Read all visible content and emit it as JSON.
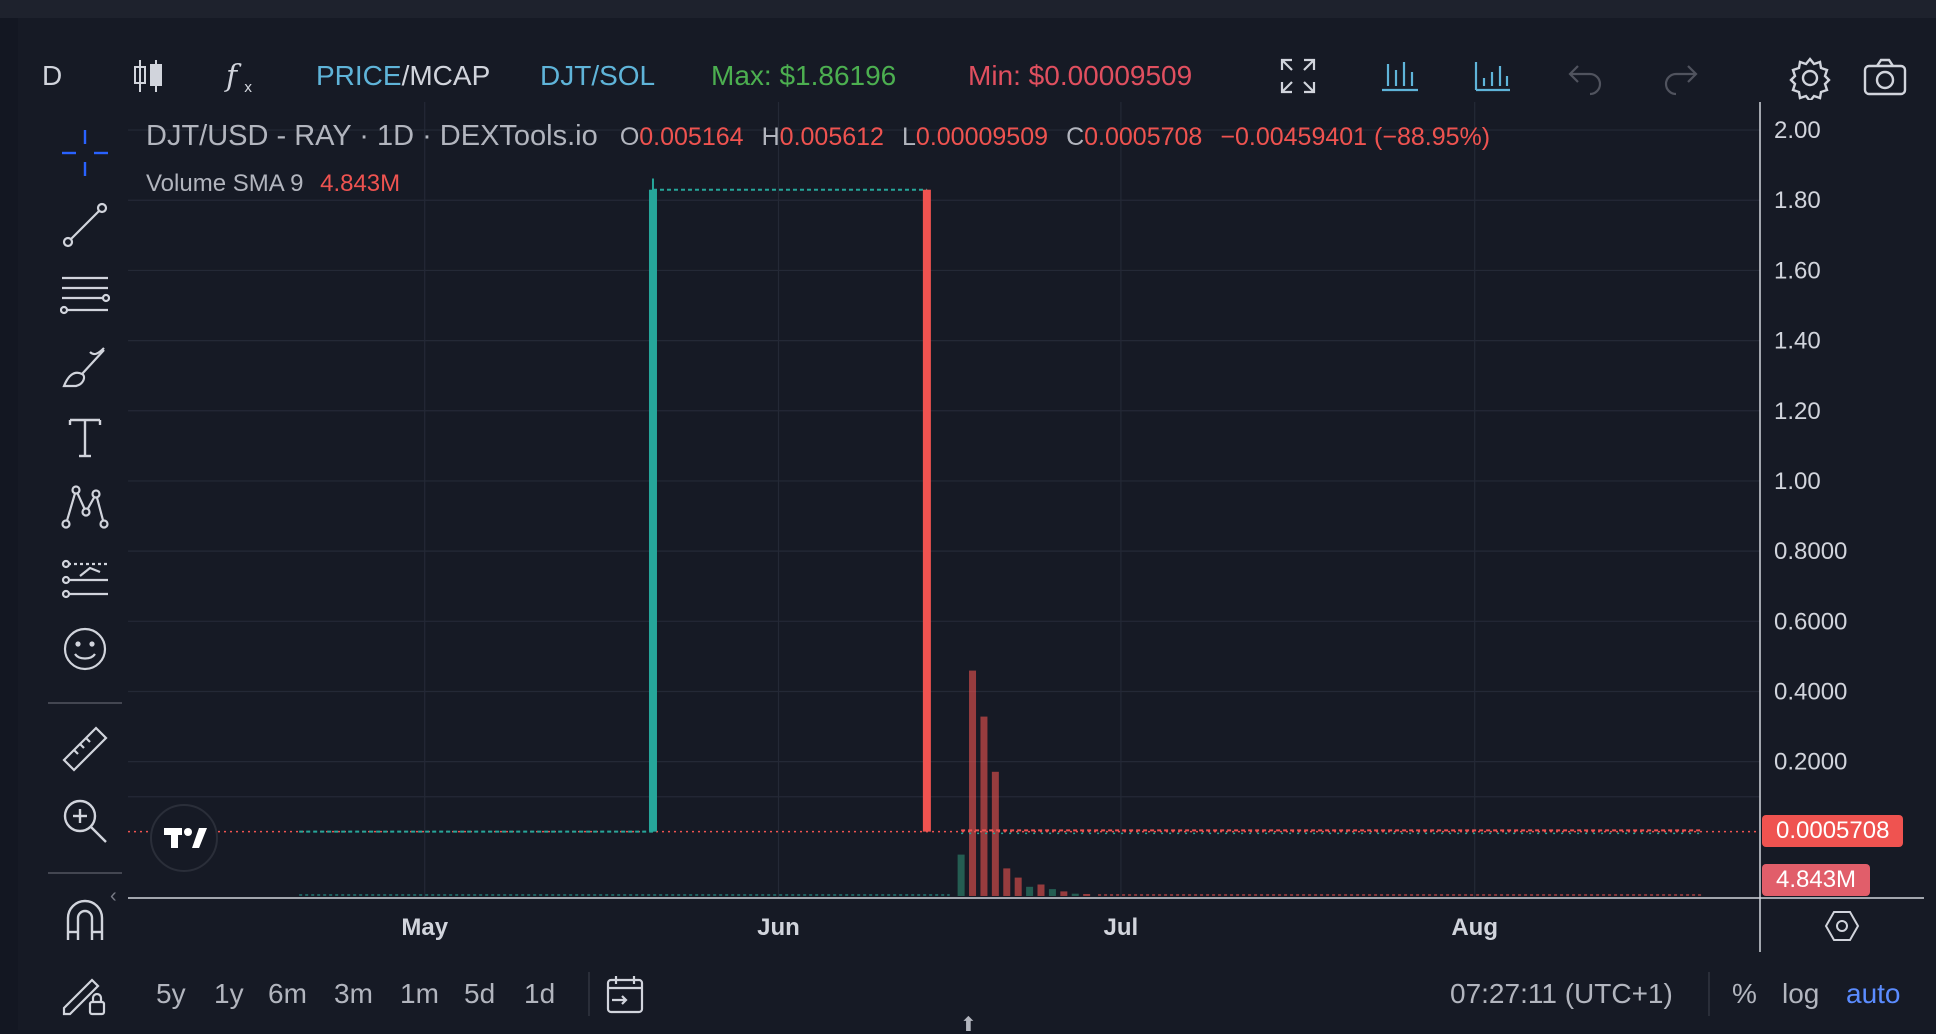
{
  "toolbar": {
    "interval": "D",
    "price_label": "PRICE",
    "separator": "/",
    "mcap_label": "MCAP",
    "pair_switch": "DJT/SOL",
    "max_label": "Max: $1.86196",
    "min_label": "Min: $0.00009509"
  },
  "legend": {
    "symbol_title": "DJT/USD - RAY · 1D · DEXTools.io",
    "o_key": "O",
    "o_val": "0.005164",
    "h_key": "H",
    "h_val": "0.005612",
    "l_key": "L",
    "l_val": "0.00009509",
    "c_key": "C",
    "c_val": "0.0005708",
    "change": "−0.00459401 (−88.95%)",
    "volume_label": "Volume SMA 9",
    "volume_val": "4.843M"
  },
  "price_tag": "0.0005708",
  "volume_tag": "4.843M",
  "bottom": {
    "ranges": [
      "5y",
      "1y",
      "6m",
      "3m",
      "1m",
      "5d",
      "1d"
    ],
    "clock": "07:27:11 (UTC+1)",
    "percent": "%",
    "log": "log",
    "auto": "auto"
  },
  "colors": {
    "up": "#26a69a",
    "up_bar": "#2e8a72",
    "down": "#ef5350",
    "grid": "#242936",
    "max_green": "#4caf50",
    "min_red": "#e04f5f",
    "link_blue": "#5fb4d9",
    "accent_blue": "#2962ff"
  },
  "chart_data": {
    "type": "candlestick",
    "title": "DJT/USD - RAY · 1D · DEXTools.io",
    "x_ticks": [
      "May",
      "Jun",
      "Jul",
      "Aug"
    ],
    "y_ticks": [
      "2.00",
      "1.80",
      "1.60",
      "1.40",
      "1.20",
      "1.00",
      "0.8000",
      "0.6000",
      "0.4000",
      "0.2000"
    ],
    "y_tick_values": [
      2.0,
      1.8,
      1.6,
      1.4,
      1.2,
      1.0,
      0.8,
      0.6,
      0.4,
      0.2
    ],
    "ylim": [
      -0.0005,
      2.08
    ],
    "x_domain": [
      "2024-04-05",
      "2024-08-26"
    ],
    "last_price": 0.0005708,
    "max_price": 1.86196,
    "min_price": 9.509e-05,
    "grid": true,
    "candles": [
      {
        "date": "2024-05-21",
        "open": 0.0006,
        "high": 1.86196,
        "low": 0.0004,
        "close": 1.83,
        "dir": "up"
      },
      {
        "date": "2024-06-14",
        "open": 1.83,
        "high": 1.83,
        "low": 0.0004,
        "close": 0.0006,
        "dir": "down"
      }
    ],
    "flat_segments": [
      {
        "from": "2024-04-20",
        "to": "2024-05-21",
        "price": 0.0005,
        "dir": "up"
      },
      {
        "from": "2024-05-21",
        "to": "2024-06-14",
        "price": 1.83,
        "dir": "up"
      },
      {
        "from": "2024-06-17",
        "to": "2024-08-21",
        "price": 0.004,
        "dir": "mixed"
      }
    ],
    "volume": {
      "name": "Volume SMA 9",
      "last": "4.843M",
      "bars": [
        {
          "date": "2024-06-17",
          "value": 0.09,
          "dir": "up"
        },
        {
          "date": "2024-06-18",
          "value": 0.49,
          "dir": "down"
        },
        {
          "date": "2024-06-19",
          "value": 0.39,
          "dir": "down"
        },
        {
          "date": "2024-06-20",
          "value": 0.27,
          "dir": "down"
        },
        {
          "date": "2024-06-21",
          "value": 0.06,
          "dir": "down"
        },
        {
          "date": "2024-06-22",
          "value": 0.04,
          "dir": "down"
        },
        {
          "date": "2024-06-23",
          "value": 0.02,
          "dir": "up"
        },
        {
          "date": "2024-06-24",
          "value": 0.025,
          "dir": "down"
        },
        {
          "date": "2024-06-25",
          "value": 0.015,
          "dir": "up"
        },
        {
          "date": "2024-06-26",
          "value": 0.01,
          "dir": "down"
        },
        {
          "date": "2024-06-27",
          "value": 0.005,
          "dir": "up"
        },
        {
          "date": "2024-06-28",
          "value": 0.004,
          "dir": "down"
        }
      ]
    }
  }
}
